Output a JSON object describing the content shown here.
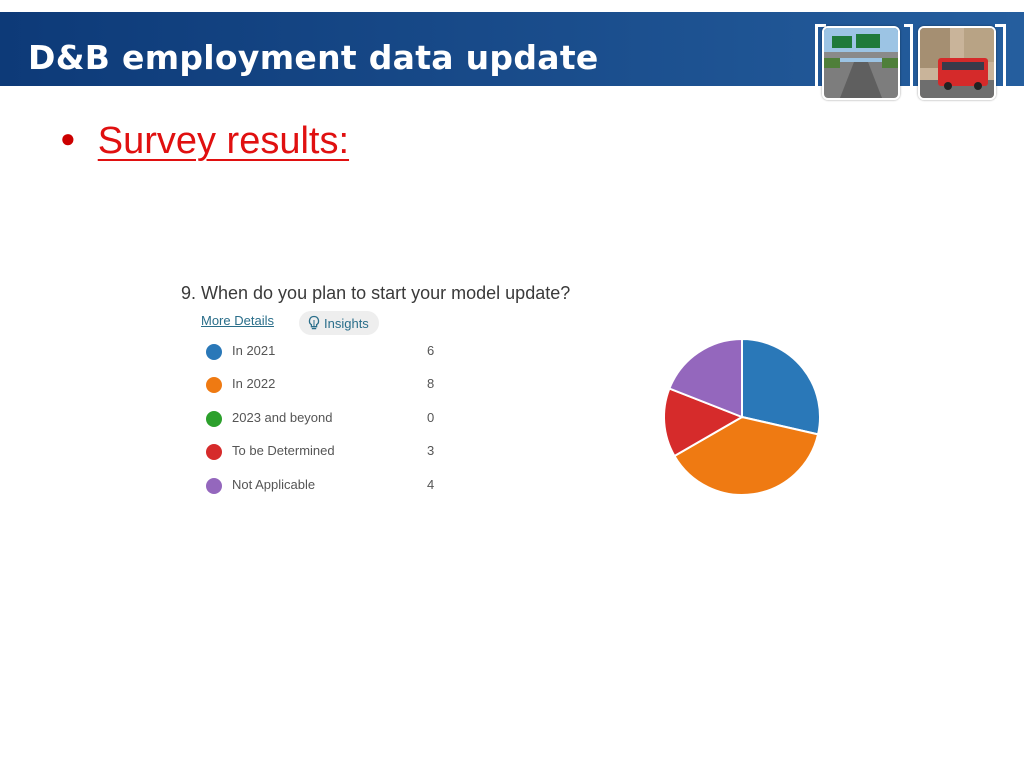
{
  "slide": {
    "title": "D&B employment data update",
    "bullet": "Survey results:"
  },
  "survey": {
    "question": "9.  When do you plan to start your model update?",
    "more_details": "More Details",
    "insights": "Insights"
  },
  "chart_data": {
    "type": "pie",
    "categories": [
      "In 2021",
      "In 2022",
      "2023 and beyond",
      "To be Determined",
      "Not Applicable"
    ],
    "values": [
      6,
      8,
      0,
      3,
      4
    ],
    "colors": [
      "#2a78b8",
      "#ef7a12",
      "#2ca02c",
      "#d62b2b",
      "#9467bd"
    ],
    "legend_position": "left"
  }
}
